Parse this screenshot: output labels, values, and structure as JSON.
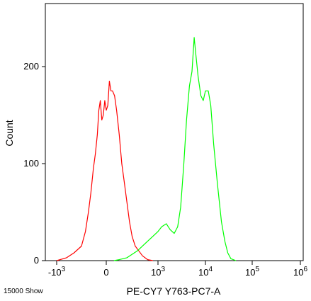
{
  "chart_data": {
    "type": "area",
    "title": "",
    "xlabel": "PE-CY7 Y763-PC7-A",
    "ylabel": "Count",
    "corner_note": "15000 Show",
    "x_scale": "biexponential",
    "x_ticks": [
      {
        "value": -1000,
        "label": "-10",
        "exp": "3"
      },
      {
        "value": 0,
        "label": "0",
        "exp": ""
      },
      {
        "value": 1000,
        "label": "10",
        "exp": "3"
      },
      {
        "value": 10000,
        "label": "10",
        "exp": "4"
      },
      {
        "value": 100000,
        "label": "10",
        "exp": "5"
      },
      {
        "value": 1000000,
        "label": "10",
        "exp": "6"
      }
    ],
    "y_ticks": [
      {
        "value": 0,
        "label": "0"
      },
      {
        "value": 100,
        "label": "100"
      },
      {
        "value": 200,
        "label": "200"
      }
    ],
    "ylim": [
      0,
      265
    ],
    "grid": false,
    "series": [
      {
        "color": "#ff0000",
        "points": [
          [
            -1000,
            0
          ],
          [
            -800,
            3
          ],
          [
            -650,
            8
          ],
          [
            -500,
            15
          ],
          [
            -420,
            30
          ],
          [
            -360,
            50
          ],
          [
            -310,
            70
          ],
          [
            -260,
            95
          ],
          [
            -220,
            110
          ],
          [
            -180,
            130
          ],
          [
            -150,
            155
          ],
          [
            -120,
            165
          ],
          [
            -90,
            145
          ],
          [
            -60,
            150
          ],
          [
            -30,
            165
          ],
          [
            0,
            155
          ],
          [
            30,
            160
          ],
          [
            60,
            185
          ],
          [
            90,
            175
          ],
          [
            120,
            175
          ],
          [
            160,
            170
          ],
          [
            200,
            155
          ],
          [
            250,
            130
          ],
          [
            300,
            100
          ],
          [
            350,
            80
          ],
          [
            400,
            60
          ],
          [
            450,
            40
          ],
          [
            500,
            25
          ],
          [
            560,
            15
          ],
          [
            630,
            10
          ],
          [
            700,
            5
          ],
          [
            800,
            1
          ],
          [
            900,
            0
          ]
        ]
      },
      {
        "color": "#00ff00",
        "points": [
          [
            150,
            0
          ],
          [
            250,
            1
          ],
          [
            400,
            3
          ],
          [
            600,
            10
          ],
          [
            800,
            20
          ],
          [
            1000,
            30
          ],
          [
            1200,
            35
          ],
          [
            1500,
            38
          ],
          [
            1800,
            32
          ],
          [
            2200,
            28
          ],
          [
            2600,
            35
          ],
          [
            3000,
            55
          ],
          [
            3500,
            100
          ],
          [
            4000,
            145
          ],
          [
            4600,
            180
          ],
          [
            5200,
            195
          ],
          [
            5800,
            230
          ],
          [
            6200,
            215
          ],
          [
            7000,
            190
          ],
          [
            8000,
            170
          ],
          [
            9000,
            165
          ],
          [
            10000,
            175
          ],
          [
            11500,
            175
          ],
          [
            13000,
            160
          ],
          [
            15000,
            120
          ],
          [
            18000,
            80
          ],
          [
            22000,
            40
          ],
          [
            26000,
            20
          ],
          [
            30000,
            8
          ],
          [
            35000,
            2
          ],
          [
            45000,
            0
          ]
        ]
      }
    ]
  }
}
